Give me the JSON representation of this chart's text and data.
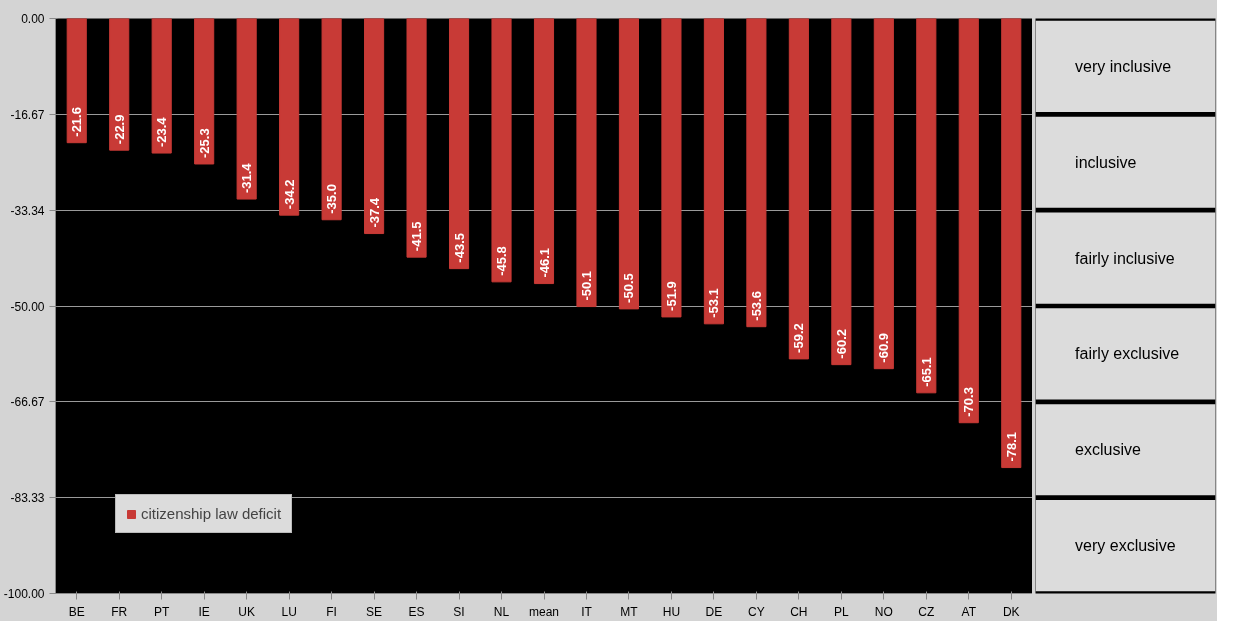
{
  "chart_data": {
    "type": "bar",
    "categories": [
      "BE",
      "FR",
      "PT",
      "IE",
      "UK",
      "LU",
      "FI",
      "SE",
      "ES",
      "SI",
      "NL",
      "mean",
      "IT",
      "MT",
      "HU",
      "DE",
      "CY",
      "CH",
      "PL",
      "NO",
      "CZ",
      "AT",
      "DK"
    ],
    "series": [
      {
        "name": "citizenship law deficit",
        "color": "#c83a36",
        "values": [
          -21.6,
          -22.9,
          -23.4,
          -25.3,
          -31.4,
          -34.2,
          -35.0,
          -37.4,
          -41.5,
          -43.5,
          -45.8,
          -46.1,
          -50.1,
          -50.5,
          -51.9,
          -53.1,
          -53.6,
          -59.2,
          -60.2,
          -60.9,
          -65.1,
          -70.3,
          -78.1
        ]
      }
    ],
    "ylim": [
      -100,
      0
    ],
    "yticks": [
      {
        "value": 0,
        "label": "0.00"
      },
      {
        "value": -16.67,
        "label": "-16.67"
      },
      {
        "value": -33.34,
        "label": "-33.34"
      },
      {
        "value": -50,
        "label": "-50.00"
      },
      {
        "value": -66.67,
        "label": "-66.67"
      },
      {
        "value": -83.33,
        "label": "-83.33"
      },
      {
        "value": -100,
        "label": "-100.00"
      }
    ],
    "value_labels": [
      "-21.6",
      "-22.9",
      "-23.4",
      "-25.3",
      "-31.4",
      "-34.2",
      "-35.0",
      "-37.4",
      "-41.5",
      "-43.5",
      "-45.8",
      "-46.1",
      "-50.1",
      "-50.5",
      "-51.9",
      "-53.1",
      "-53.6",
      "-59.2",
      "-60.2",
      "-60.9",
      "-65.1",
      "-70.3",
      "-78.1"
    ],
    "grid": "y",
    "legend": "bottom left",
    "annotations": [
      "very inclusive",
      "inclusive",
      "fairly inclusive",
      "fairly exclusive",
      "exclusive",
      "very exclusive"
    ]
  }
}
